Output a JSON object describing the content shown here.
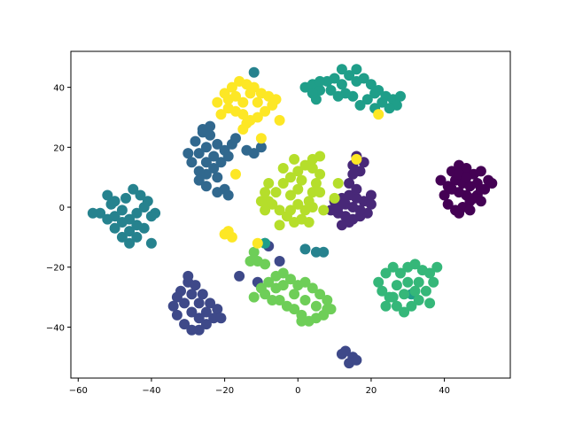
{
  "chart_data": {
    "type": "scatter",
    "title": "",
    "xlabel": "",
    "ylabel": "",
    "xlim": [
      -62,
      58
    ],
    "ylim": [
      -57,
      52
    ],
    "x_ticks": [
      -60,
      -40,
      -20,
      0,
      20,
      40
    ],
    "y_ticks": [
      -40,
      -20,
      0,
      20,
      40
    ],
    "x_tick_labels": [
      "−60",
      "−40",
      "−20",
      "0",
      "20",
      "40"
    ],
    "y_tick_labels": [
      "−40",
      "−20",
      "0",
      "20",
      "40"
    ],
    "grid": false,
    "legend": "none",
    "clusters": [
      {
        "color": "#440154",
        "points": [
          [
            42,
            12
          ],
          [
            44,
            14
          ],
          [
            46,
            13
          ],
          [
            48,
            11
          ],
          [
            50,
            12
          ],
          [
            52,
            9
          ],
          [
            51,
            6
          ],
          [
            49,
            4
          ],
          [
            47,
            2
          ],
          [
            45,
            0
          ],
          [
            43,
            -1
          ],
          [
            41,
            1
          ],
          [
            40,
            4
          ],
          [
            41,
            7
          ],
          [
            43,
            9
          ],
          [
            45,
            8
          ],
          [
            47,
            7
          ],
          [
            49,
            8
          ],
          [
            46,
            4
          ],
          [
            44,
            5
          ],
          [
            42,
            6
          ],
          [
            48,
            3
          ],
          [
            50,
            6
          ],
          [
            53,
            8
          ],
          [
            44,
            11
          ],
          [
            39,
            9
          ],
          [
            46,
            10
          ],
          [
            44,
            -2
          ],
          [
            47,
            -1
          ],
          [
            50,
            2
          ]
        ]
      },
      {
        "color": "#482878",
        "points": [
          [
            10,
            2
          ],
          [
            12,
            3
          ],
          [
            14,
            4
          ],
          [
            16,
            3
          ],
          [
            18,
            2
          ],
          [
            20,
            1
          ],
          [
            19,
            -2
          ],
          [
            17,
            -3
          ],
          [
            15,
            -4
          ],
          [
            13,
            -3
          ],
          [
            11,
            -2
          ],
          [
            9,
            -1
          ],
          [
            11,
            0
          ],
          [
            13,
            1
          ],
          [
            15,
            0
          ],
          [
            17,
            -1
          ],
          [
            14,
            -5
          ],
          [
            12,
            -6
          ],
          [
            16,
            17
          ],
          [
            15,
            14
          ],
          [
            17,
            12
          ],
          [
            15,
            11
          ],
          [
            18,
            15
          ],
          [
            14,
            8
          ],
          [
            16,
            6
          ],
          [
            20,
            4
          ]
        ]
      },
      {
        "color": "#3e4989",
        "points": [
          [
            -32,
            -28
          ],
          [
            -30,
            -25
          ],
          [
            -28,
            -26
          ],
          [
            -26,
            -29
          ],
          [
            -24,
            -32
          ],
          [
            -22,
            -34
          ],
          [
            -23,
            -37
          ],
          [
            -25,
            -39
          ],
          [
            -27,
            -41
          ],
          [
            -29,
            -41
          ],
          [
            -31,
            -39
          ],
          [
            -33,
            -36
          ],
          [
            -34,
            -33
          ],
          [
            -33,
            -30
          ],
          [
            -29,
            -29
          ],
          [
            -27,
            -32
          ],
          [
            -25,
            -35
          ],
          [
            -29,
            -35
          ],
          [
            -31,
            -32
          ],
          [
            -27,
            -37
          ],
          [
            -30,
            -23
          ],
          [
            -21,
            -37
          ],
          [
            13,
            -48
          ],
          [
            15,
            -50
          ],
          [
            14,
            -52
          ],
          [
            12,
            -49
          ],
          [
            16,
            -51
          ],
          [
            -9,
            -12
          ],
          [
            -8,
            -13
          ],
          [
            -11,
            -25
          ],
          [
            -5,
            -18
          ],
          [
            -16,
            -23
          ]
        ]
      },
      {
        "color": "#31688e",
        "points": [
          [
            -28,
            22
          ],
          [
            -26,
            25
          ],
          [
            -24,
            24
          ],
          [
            -22,
            21
          ],
          [
            -20,
            19
          ],
          [
            -18,
            21
          ],
          [
            -19,
            17
          ],
          [
            -21,
            15
          ],
          [
            -23,
            13
          ],
          [
            -25,
            11
          ],
          [
            -27,
            12
          ],
          [
            -29,
            15
          ],
          [
            -30,
            18
          ],
          [
            -27,
            18
          ],
          [
            -25,
            20
          ],
          [
            -23,
            17
          ],
          [
            -25,
            15
          ],
          [
            -27,
            9
          ],
          [
            -25,
            7
          ],
          [
            -20,
            6
          ],
          [
            -19,
            4
          ],
          [
            -22,
            5
          ],
          [
            -12,
            18
          ],
          [
            -10,
            20
          ],
          [
            -14,
            19
          ],
          [
            -17,
            23
          ],
          [
            -24,
            27
          ],
          [
            -22,
            10
          ],
          [
            -26,
            26
          ]
        ]
      },
      {
        "color": "#26828e",
        "points": [
          [
            -52,
            4
          ],
          [
            -50,
            2
          ],
          [
            -48,
            -1
          ],
          [
            -46,
            -4
          ],
          [
            -44,
            -2
          ],
          [
            -42,
            0
          ],
          [
            -40,
            -3
          ],
          [
            -42,
            -7
          ],
          [
            -44,
            -10
          ],
          [
            -46,
            -12
          ],
          [
            -48,
            -10
          ],
          [
            -50,
            -7
          ],
          [
            -52,
            -4
          ],
          [
            -54,
            -2
          ],
          [
            -56,
            -2
          ],
          [
            -47,
            3
          ],
          [
            -45,
            6
          ],
          [
            -43,
            4
          ],
          [
            -41,
            2
          ],
          [
            -39,
            -2
          ],
          [
            -40,
            -12
          ],
          [
            -44,
            -6
          ],
          [
            -48,
            -5
          ],
          [
            -50,
            -3
          ],
          [
            -12,
            45
          ],
          [
            2,
            -14
          ],
          [
            5,
            -15
          ],
          [
            7,
            -15
          ],
          [
            -46,
            -8
          ],
          [
            -51,
            1
          ]
        ]
      },
      {
        "color": "#1f9e89",
        "points": [
          [
            2,
            40
          ],
          [
            4,
            41
          ],
          [
            6,
            39
          ],
          [
            8,
            42
          ],
          [
            10,
            43
          ],
          [
            12,
            41
          ],
          [
            14,
            44
          ],
          [
            16,
            46
          ],
          [
            18,
            43
          ],
          [
            20,
            41
          ],
          [
            22,
            39
          ],
          [
            24,
            37
          ],
          [
            26,
            36
          ],
          [
            28,
            37
          ],
          [
            27,
            34
          ],
          [
            25,
            33
          ],
          [
            23,
            35
          ],
          [
            21,
            38
          ],
          [
            19,
            36
          ],
          [
            17,
            34
          ],
          [
            15,
            37
          ],
          [
            13,
            38
          ],
          [
            11,
            37
          ],
          [
            9,
            39
          ],
          [
            5,
            36
          ],
          [
            4,
            38
          ],
          [
            6,
            42
          ],
          [
            12,
            46
          ],
          [
            16,
            42
          ],
          [
            21,
            33
          ],
          [
            31,
            -29
          ],
          [
            -9,
            -12
          ]
        ]
      },
      {
        "color": "#35b779",
        "points": [
          [
            24,
            -22
          ],
          [
            26,
            -20
          ],
          [
            28,
            -22
          ],
          [
            30,
            -20
          ],
          [
            32,
            -19
          ],
          [
            34,
            -21
          ],
          [
            36,
            -22
          ],
          [
            38,
            -20
          ],
          [
            37,
            -25
          ],
          [
            35,
            -28
          ],
          [
            33,
            -31
          ],
          [
            31,
            -33
          ],
          [
            29,
            -35
          ],
          [
            27,
            -33
          ],
          [
            25,
            -30
          ],
          [
            23,
            -28
          ],
          [
            22,
            -25
          ],
          [
            27,
            -26
          ],
          [
            30,
            -25
          ],
          [
            33,
            -25
          ],
          [
            29,
            -29
          ],
          [
            32,
            -28
          ],
          [
            36,
            -32
          ],
          [
            24,
            -33
          ],
          [
            26,
            -30
          ]
        ]
      },
      {
        "color": "#6ece58",
        "points": [
          [
            -12,
            -30
          ],
          [
            -10,
            -27
          ],
          [
            -8,
            -25
          ],
          [
            -6,
            -23
          ],
          [
            -4,
            -22
          ],
          [
            -2,
            -24
          ],
          [
            0,
            -26
          ],
          [
            2,
            -25
          ],
          [
            4,
            -27
          ],
          [
            6,
            -29
          ],
          [
            8,
            -31
          ],
          [
            9,
            -34
          ],
          [
            7,
            -36
          ],
          [
            5,
            -37
          ],
          [
            3,
            -38
          ],
          [
            1,
            -36
          ],
          [
            -1,
            -34
          ],
          [
            -3,
            -33
          ],
          [
            -5,
            -31
          ],
          [
            -7,
            -31
          ],
          [
            -9,
            -29
          ],
          [
            -4,
            -26
          ],
          [
            -1,
            -29
          ],
          [
            2,
            -31
          ],
          [
            5,
            -33
          ],
          [
            -13,
            -18
          ],
          [
            -11,
            -18
          ],
          [
            -12,
            -15
          ],
          [
            -9,
            -19
          ],
          [
            -6,
            -27
          ],
          [
            1,
            -38
          ],
          [
            8,
            -34
          ]
        ]
      },
      {
        "color": "#b5de2b",
        "points": [
          [
            -8,
            2
          ],
          [
            -6,
            5
          ],
          [
            -4,
            8
          ],
          [
            -2,
            10
          ],
          [
            0,
            12
          ],
          [
            2,
            14
          ],
          [
            4,
            13
          ],
          [
            6,
            11
          ],
          [
            5,
            8
          ],
          [
            4,
            5
          ],
          [
            3,
            2
          ],
          [
            2,
            -1
          ],
          [
            1,
            -4
          ],
          [
            -1,
            -5
          ],
          [
            -3,
            -3
          ],
          [
            -5,
            -1
          ],
          [
            -7,
            1
          ],
          [
            -2,
            4
          ],
          [
            0,
            6
          ],
          [
            1,
            9
          ],
          [
            -4,
            13
          ],
          [
            -1,
            16
          ],
          [
            4,
            16
          ],
          [
            6,
            17
          ],
          [
            -9,
            -1
          ],
          [
            -10,
            2
          ],
          [
            -8,
            8
          ],
          [
            -9,
            5
          ],
          [
            0,
            1
          ],
          [
            -2,
            -1
          ],
          [
            4,
            0
          ],
          [
            7,
            -1
          ],
          [
            3,
            -5
          ],
          [
            -5,
            -6
          ],
          [
            6,
            5
          ],
          [
            10,
            3
          ],
          [
            11,
            8
          ]
        ]
      },
      {
        "color": "#fde725",
        "points": [
          [
            -22,
            35
          ],
          [
            -20,
            38
          ],
          [
            -18,
            40
          ],
          [
            -16,
            42
          ],
          [
            -14,
            41
          ],
          [
            -12,
            40
          ],
          [
            -10,
            38
          ],
          [
            -8,
            37
          ],
          [
            -7,
            34
          ],
          [
            -9,
            32
          ],
          [
            -11,
            30
          ],
          [
            -13,
            29
          ],
          [
            -15,
            31
          ],
          [
            -17,
            32
          ],
          [
            -19,
            33
          ],
          [
            -21,
            31
          ],
          [
            -19,
            36
          ],
          [
            -15,
            35
          ],
          [
            -11,
            35
          ],
          [
            -13,
            38
          ],
          [
            -17,
            37
          ],
          [
            -5,
            29
          ],
          [
            -6,
            36
          ],
          [
            -15,
            26
          ],
          [
            -17,
            11
          ],
          [
            -18,
            -10
          ],
          [
            -20,
            -9
          ],
          [
            -19,
            -8
          ],
          [
            -11,
            -12
          ],
          [
            -10,
            23
          ],
          [
            22,
            31
          ],
          [
            16,
            16
          ],
          [
            -14,
            28
          ]
        ]
      }
    ]
  }
}
